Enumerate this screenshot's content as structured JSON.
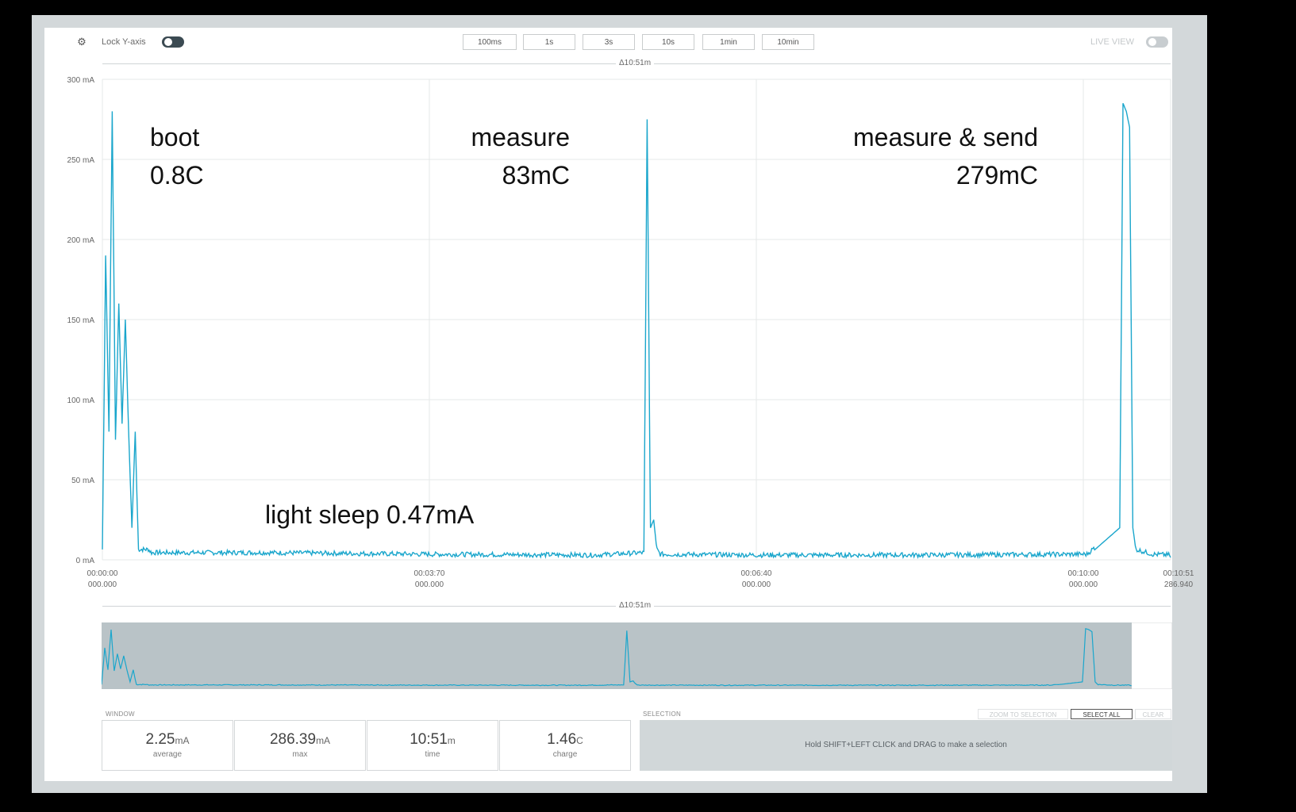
{
  "toolbar": {
    "gear_icon": "gear-icon",
    "lock_y_axis_label": "Lock Y-axis",
    "lock_y_axis_on": true,
    "zoom_buttons": [
      "100ms",
      "1s",
      "3s",
      "10s",
      "1min",
      "10min"
    ],
    "live_view_label": "LIVE VIEW",
    "live_view_on": false
  },
  "main_chart": {
    "range_label": "Δ10:51m",
    "y_unit": "mA",
    "y_ticks": [
      "300 mA",
      "250 mA",
      "200 mA",
      "150 mA",
      "100 mA",
      "50 mA",
      "0 mA"
    ],
    "x_ticks": [
      {
        "time": "00:00:00",
        "ms": "000.000"
      },
      {
        "time": "00:03:70",
        "ms": "000.000"
      },
      {
        "time": "00:06:40",
        "ms": "000.000"
      },
      {
        "time": "00:10:00",
        "ms": "000.000"
      },
      {
        "time": "00:10:51",
        "ms": "286.940"
      }
    ],
    "annotations": {
      "boot_title": "boot",
      "boot_value": "0.8C",
      "measure_title": "measure",
      "measure_value": "83mC",
      "send_title": "measure & send",
      "send_value": "279mC",
      "sleep_text": "light sleep 0.47mA"
    }
  },
  "chart_data": {
    "type": "line",
    "title": "",
    "xlabel": "",
    "ylabel": "",
    "ylim": [
      0,
      300
    ],
    "x_unit": "seconds",
    "series": [
      {
        "x": [
          0,
          2,
          4,
          6,
          8,
          10,
          12,
          14,
          16,
          18,
          20,
          22,
          24,
          26,
          28,
          30,
          35,
          100,
          200,
          300,
          330,
          332,
          334,
          336,
          338,
          340,
          400,
          500,
          600,
          620,
          622,
          624,
          626,
          628,
          630,
          640,
          651
        ],
        "values": [
          5,
          190,
          80,
          280,
          75,
          160,
          85,
          150,
          80,
          20,
          80,
          5,
          5,
          5,
          5,
          3,
          3,
          3,
          2,
          1.5,
          3,
          275,
          20,
          25,
          5,
          2,
          1.5,
          1.5,
          2,
          20,
          285,
          280,
          270,
          20,
          5,
          2,
          1.5
        ]
      }
    ],
    "grid": true
  },
  "overview": {
    "range_label": "Δ10:51m"
  },
  "window_stats": {
    "section_title": "WINDOW",
    "items": [
      {
        "value": "2.25",
        "unit": "mA",
        "label": "average"
      },
      {
        "value": "286.39",
        "unit": "mA",
        "label": "max"
      },
      {
        "value": "10:51",
        "unit": "m",
        "label": "time"
      },
      {
        "value": "1.46",
        "unit": "C",
        "label": "charge"
      }
    ]
  },
  "selection": {
    "section_title": "SELECTION",
    "zoom_to_selection": "ZOOM TO SELECTION",
    "select_all": "SELECT ALL",
    "clear": "CLEAR",
    "hint": "Hold SHIFT+LEFT CLICK and DRAG to make a selection"
  },
  "colors": {
    "trace": "#1aa6cc",
    "overview_fill": "#b9c3c7",
    "selection_bg": "#d1d7d9"
  }
}
